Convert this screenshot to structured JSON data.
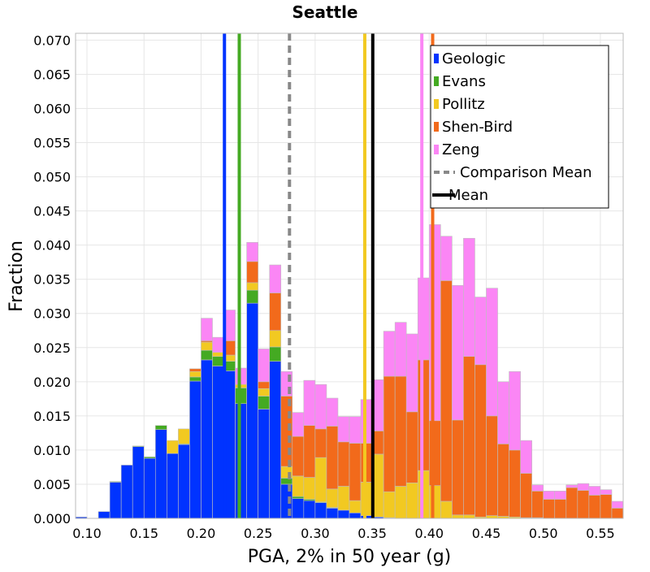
{
  "chart_data": {
    "type": "bar",
    "stacked": true,
    "title": "Seattle",
    "xlabel": "PGA, 2% in 50 year (g)",
    "ylabel": "Fraction",
    "xlim": [
      0.09,
      0.57
    ],
    "ylim": [
      0.0,
      0.071
    ],
    "grid": true,
    "legend_position": "top-right",
    "bin_width": 0.01,
    "x_ticks": [
      "0.10",
      "0.15",
      "0.20",
      "0.25",
      "0.30",
      "0.35",
      "0.40",
      "0.45",
      "0.50",
      "0.55"
    ],
    "y_ticks": [
      "0.000",
      "0.005",
      "0.010",
      "0.015",
      "0.020",
      "0.025",
      "0.030",
      "0.035",
      "0.040",
      "0.045",
      "0.050",
      "0.055",
      "0.060",
      "0.065",
      "0.070"
    ],
    "x": [
      0.095,
      0.105,
      0.115,
      0.125,
      0.135,
      0.145,
      0.155,
      0.165,
      0.175,
      0.185,
      0.195,
      0.205,
      0.215,
      0.225,
      0.235,
      0.245,
      0.255,
      0.265,
      0.275,
      0.285,
      0.295,
      0.305,
      0.315,
      0.325,
      0.335,
      0.345,
      0.355,
      0.365,
      0.375,
      0.385,
      0.395,
      0.405,
      0.415,
      0.425,
      0.435,
      0.445,
      0.455,
      0.465,
      0.475,
      0.485,
      0.495,
      0.505,
      0.515,
      0.525,
      0.535,
      0.545,
      0.555,
      0.565
    ],
    "series": [
      {
        "name": "Geologic",
        "color": "#0033ff",
        "values": [
          0.0002,
          0.0,
          0.001,
          0.0053,
          0.0078,
          0.0105,
          0.0088,
          0.013,
          0.0095,
          0.0108,
          0.0201,
          0.0232,
          0.0223,
          0.0216,
          0.0168,
          0.0315,
          0.016,
          0.023,
          0.005,
          0.0029,
          0.0026,
          0.0023,
          0.0015,
          0.0012,
          0.0008,
          0.0004,
          0.0002,
          0.0001,
          0,
          0,
          0,
          0,
          0,
          0,
          0,
          0,
          0,
          0,
          0,
          0,
          0,
          0,
          0,
          0,
          0,
          0,
          0,
          0
        ]
      },
      {
        "name": "Evans",
        "color": "#44aa22",
        "values": [
          0,
          0,
          0,
          0.0001,
          0,
          0.0001,
          0.0002,
          0.0006,
          0,
          0.0001,
          0.0006,
          0.0014,
          0.0014,
          0.0014,
          0.0023,
          0.0019,
          0.0019,
          0.0021,
          0.0009,
          0.0003,
          0.0002,
          0.0001,
          0.0001,
          0,
          0,
          0,
          0,
          0,
          0,
          0,
          0,
          0,
          0,
          0,
          0,
          0,
          0,
          0,
          0,
          0,
          0,
          0,
          0,
          0,
          0,
          0,
          0,
          0
        ]
      },
      {
        "name": "Pollitz",
        "color": "#f2c921",
        "values": [
          0,
          0,
          0,
          0,
          0,
          0,
          0,
          0,
          0.0019,
          0.0022,
          0.0008,
          0.0012,
          0.0006,
          0.0009,
          0.0005,
          0.0011,
          0.0011,
          0.0024,
          0.0017,
          0.003,
          0.0032,
          0.0065,
          0.0027,
          0.0035,
          0.0018,
          0.0049,
          0.0092,
          0.0038,
          0.0047,
          0.0052,
          0.007,
          0.0048,
          0.0025,
          0.0005,
          0.0005,
          0.0002,
          0.0004,
          0.0003,
          0.0002,
          0.0001,
          0.0001,
          0,
          0,
          0,
          0,
          0,
          0,
          0
        ]
      },
      {
        "name": "Shen-Bird",
        "color": "#f26a1b",
        "values": [
          0,
          0,
          0,
          0,
          0,
          0,
          0,
          0,
          0,
          0,
          0.0004,
          0.0002,
          0,
          0.0021,
          0,
          0.0031,
          0.001,
          0.0055,
          0.0103,
          0.0058,
          0.0076,
          0.0042,
          0.0092,
          0.0065,
          0.0084,
          0.0057,
          0.0034,
          0.0169,
          0.0161,
          0.0104,
          0.0162,
          0.0095,
          0.0323,
          0.0139,
          0.0232,
          0.0223,
          0.0146,
          0.0106,
          0.0098,
          0.0065,
          0.0039,
          0.0028,
          0.0028,
          0.0045,
          0.0041,
          0.0034,
          0.0035,
          0.0015
        ]
      },
      {
        "name": "Zeng",
        "color": "#fb86f5",
        "values": [
          0,
          0,
          0,
          0,
          0,
          0,
          0,
          0,
          0,
          0,
          0,
          0.0033,
          0.0022,
          0.0045,
          0.0024,
          0.0028,
          0.0048,
          0.0041,
          0.0036,
          0.0035,
          0.0066,
          0.0065,
          0.0041,
          0.0037,
          0.0039,
          0.0064,
          0.0075,
          0.0066,
          0.0079,
          0.0114,
          0.012,
          0.0287,
          0.0065,
          0.0197,
          0.0173,
          0.0099,
          0.0187,
          0.0091,
          0.0115,
          0.0048,
          0.0009,
          0.0012,
          0.0012,
          0.0004,
          0.001,
          0.0013,
          0.0007,
          0.001
        ]
      }
    ],
    "vertical_lines": [
      {
        "name": "Geologic",
        "x": 0.2205,
        "color": "#0033ff",
        "style": "solid"
      },
      {
        "name": "Evans",
        "x": 0.2335,
        "color": "#44aa22",
        "style": "solid"
      },
      {
        "name": "Pollitz",
        "x": 0.3435,
        "color": "#f2c921",
        "style": "solid"
      },
      {
        "name": "Shen-Bird",
        "x": 0.403,
        "color": "#f26a1b",
        "style": "solid"
      },
      {
        "name": "Zeng",
        "x": 0.3935,
        "color": "#fb86f5",
        "style": "solid"
      },
      {
        "name": "Comparison Mean",
        "x": 0.2775,
        "color": "#888888",
        "style": "dashed"
      },
      {
        "name": "Mean",
        "x": 0.3505,
        "color": "#000000",
        "style": "solid"
      }
    ],
    "legend": [
      {
        "label": "Geologic",
        "color": "#0033ff",
        "kind": "patch"
      },
      {
        "label": "Evans",
        "color": "#44aa22",
        "kind": "patch"
      },
      {
        "label": "Pollitz",
        "color": "#f2c921",
        "kind": "patch"
      },
      {
        "label": "Shen-Bird",
        "color": "#f26a1b",
        "kind": "patch"
      },
      {
        "label": "Zeng",
        "color": "#fb86f5",
        "kind": "patch"
      },
      {
        "label": "Comparison Mean",
        "color": "#888888",
        "kind": "dashed-line"
      },
      {
        "label": "Mean",
        "color": "#000000",
        "kind": "line"
      }
    ]
  }
}
